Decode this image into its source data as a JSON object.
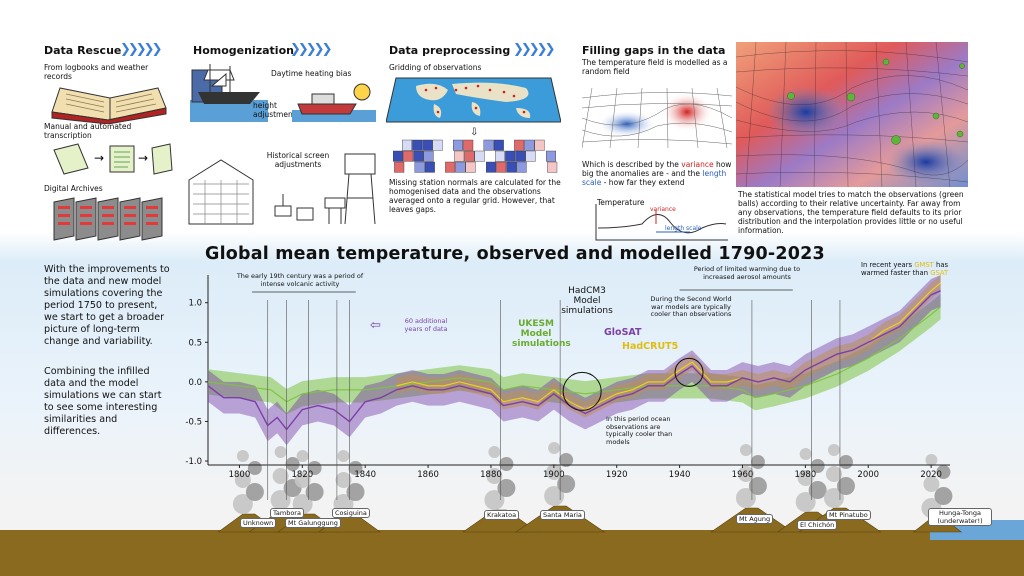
{
  "panels": {
    "rescue": {
      "title": "Data Rescue",
      "line1": "From logbooks and weather records",
      "line2": "Manual and automated transcription",
      "line3": "Digital Archives"
    },
    "homog": {
      "title": "Homogenization",
      "daytime": "Daytime heating bias",
      "height": "height adjustments",
      "screen": "Historical screen adjustments"
    },
    "preproc": {
      "title": "Data preprocessing",
      "gridding": "Gridding of observations",
      "caption": "Missing station normals are calculated for the homogenised data and the observations averaged onto a regular grid. However, that leaves gaps."
    },
    "gaps": {
      "title": "Filling gaps in the data",
      "sub": "The temperature field is modelled as a random field",
      "desc_pre": "Which is described by the",
      "variance": "variance",
      "desc_mid": "how big the anomalies are - and the",
      "length_scale": "length scale",
      "desc_post": "- how far they extend",
      "temp_label": "Temperature",
      "var_small": "variance",
      "len_small": "length scale"
    },
    "model": {
      "caption": "The statistical model tries to match the observations (green balls) according to their relative uncertainty. Far away from any observations, the temperature field defaults to its prior distribution and the interpolation provides little or no useful information."
    }
  },
  "side_text": {
    "p1": "With the improvements to the data and new model simulations covering the period 1750 to present, we start to get a broader picture of long-term change and variability.",
    "p2": "Combining the infilled data and the model simulations we can start to see some interesting similarities and differences."
  },
  "annotations": {
    "volcanic": "The early 19th century was a period of intense volcanic activity",
    "extra_years": "60 additional years of data",
    "hadcm3": "HadCM3 Model simulations",
    "ukesm": "UKESM Model simulations",
    "glosat": "GloSAT",
    "hadcrut": "HadCRUT5",
    "ww2": "During the Second World war models are typically cooler than observations",
    "ocean": "In this period ocean observations are typically cooler than models",
    "limited": "Period of limited warming due to increased aerosol amounts",
    "recent_pre": "In recent years",
    "gmst": "GMST",
    "recent_mid": "has warmed faster than",
    "gsat": "GSAT"
  },
  "volcanoes": [
    "Unknown",
    "Tambora",
    "Mt Galunggung",
    "Cosiguina",
    "Krakatoa",
    "Santa Maria",
    "Mt Agung",
    "El Chichón",
    "Mt Pinatubo",
    "Hunga-Tonga (underwater!)"
  ],
  "colors": {
    "glosat": "#7b3fa6",
    "hadcrut": "#f2d21a",
    "ukesm": "#7fc241",
    "hadcm3": "#9a9a9a",
    "variance": "#d22020",
    "length_scale": "#2a5fc0",
    "arrows": "#3a7fd6"
  },
  "chart_data": {
    "type": "line",
    "title": "Global mean temperature, observed and modelled 1790-2023",
    "xlim": [
      1790,
      2026
    ],
    "ylim": [
      -1.05,
      1.35
    ],
    "x_ticks": [
      1800,
      1820,
      1840,
      1860,
      1880,
      1900,
      1920,
      1940,
      1960,
      1980,
      2000,
      2020
    ],
    "y_ticks": [
      1.0,
      0.5,
      0.0,
      -0.5,
      -1.0
    ],
    "y_tick_labels": [
      "1.0",
      "0.5",
      "0.0",
      "-0.5",
      "-1.0"
    ],
    "x_tick_labels": [
      "1800",
      "1820",
      "1840",
      "1860",
      "1880",
      "1900",
      "1920",
      "1940",
      "1960",
      "1980",
      "2000",
      "2020"
    ],
    "grid": false,
    "series": [
      {
        "name": "GloSAT",
        "x": [
          1790,
          1795,
          1800,
          1805,
          1809,
          1812,
          1815,
          1817,
          1820,
          1825,
          1830,
          1835,
          1840,
          1845,
          1850,
          1855,
          1860,
          1865,
          1870,
          1875,
          1880,
          1884,
          1890,
          1895,
          1900,
          1905,
          1910,
          1915,
          1920,
          1925,
          1930,
          1935,
          1940,
          1944,
          1950,
          1955,
          1960,
          1965,
          1970,
          1975,
          1980,
          1985,
          1990,
          1995,
          2000,
          2005,
          2010,
          2015,
          2020,
          2023
        ],
        "y": [
          -0.05,
          -0.2,
          -0.2,
          -0.25,
          -0.55,
          -0.45,
          -0.6,
          -0.5,
          -0.35,
          -0.3,
          -0.35,
          -0.5,
          -0.25,
          -0.2,
          -0.1,
          -0.05,
          -0.1,
          -0.1,
          -0.05,
          -0.1,
          -0.15,
          -0.3,
          -0.25,
          -0.3,
          -0.15,
          -0.3,
          -0.4,
          -0.3,
          -0.2,
          -0.15,
          -0.05,
          -0.05,
          0.1,
          0.2,
          -0.05,
          -0.05,
          0.05,
          0.0,
          0.05,
          0.0,
          0.15,
          0.25,
          0.35,
          0.4,
          0.5,
          0.6,
          0.7,
          0.9,
          1.1,
          1.15
        ]
      },
      {
        "name": "HadCRUT5",
        "x": [
          1850,
          1855,
          1860,
          1865,
          1870,
          1875,
          1880,
          1884,
          1890,
          1895,
          1900,
          1905,
          1910,
          1915,
          1920,
          1925,
          1930,
          1935,
          1940,
          1944,
          1950,
          1955,
          1960,
          1965,
          1970,
          1975,
          1980,
          1985,
          1990,
          1995,
          2000,
          2005,
          2010,
          2015,
          2020,
          2023
        ],
        "y": [
          -0.05,
          0.0,
          -0.05,
          -0.05,
          0.0,
          -0.05,
          -0.1,
          -0.25,
          -0.2,
          -0.25,
          -0.1,
          -0.25,
          -0.35,
          -0.25,
          -0.15,
          -0.1,
          0.0,
          0.0,
          0.15,
          0.25,
          0.0,
          0.0,
          0.05,
          0.0,
          0.05,
          0.0,
          0.15,
          0.25,
          0.35,
          0.4,
          0.5,
          0.65,
          0.75,
          0.95,
          1.15,
          1.25
        ]
      },
      {
        "name": "UKESM",
        "x": [
          1790,
          1800,
          1810,
          1815,
          1820,
          1830,
          1840,
          1850,
          1860,
          1870,
          1880,
          1884,
          1890,
          1900,
          1910,
          1920,
          1930,
          1940,
          1950,
          1960,
          1964,
          1970,
          1980,
          1990,
          2000,
          2010,
          2020,
          2023
        ],
        "y": [
          0.0,
          -0.05,
          -0.1,
          -0.25,
          -0.15,
          -0.1,
          -0.1,
          -0.05,
          0.0,
          0.05,
          0.0,
          -0.1,
          -0.05,
          -0.1,
          -0.15,
          -0.1,
          -0.05,
          -0.05,
          -0.05,
          -0.1,
          -0.2,
          -0.15,
          -0.05,
          0.1,
          0.3,
          0.55,
          0.85,
          0.95
        ]
      }
    ]
  }
}
